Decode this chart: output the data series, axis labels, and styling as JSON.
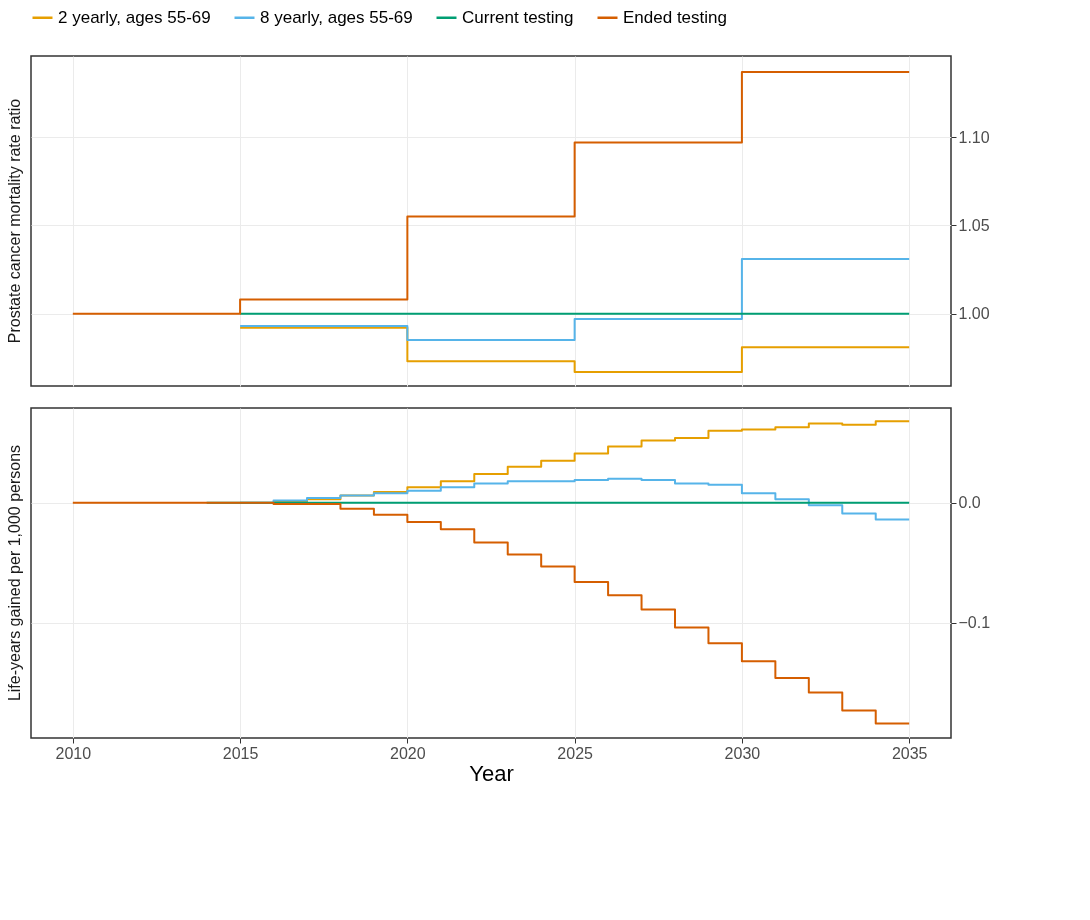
{
  "chart_data": [
    {
      "type": "step",
      "ylabel": "Prostate cancer mortality rate ratio",
      "x": [
        2010,
        2015,
        2020,
        2025,
        2030,
        2035
      ],
      "xlim": [
        2008.75,
        2036.25
      ],
      "xticks": [
        2010,
        2015,
        2020,
        2025,
        2030,
        2035
      ],
      "ylim": [
        0.959,
        1.146
      ],
      "yticks": [
        {
          "value": 1.0,
          "label": "1.00"
        },
        {
          "value": 1.05,
          "label": "1.05"
        },
        {
          "value": 1.1,
          "label": "1.10"
        }
      ],
      "grid": true,
      "legend": "top",
      "tick_labels": "y",
      "series": [
        {
          "name": "2 yearly, ages 55-69",
          "color": "#e69f00",
          "values": [
            null,
            0.992,
            0.973,
            0.967,
            0.981,
            0.981
          ]
        },
        {
          "name": "8 yearly, ages 55-69",
          "color": "#56b4e9",
          "values": [
            null,
            0.993,
            0.985,
            0.997,
            1.031,
            1.031
          ]
        },
        {
          "name": "Current testing",
          "color": "#009e73",
          "values": [
            null,
            1.0,
            1.0,
            1.0,
            1.0,
            1.0
          ]
        },
        {
          "name": "Ended testing",
          "color": "#d55e00",
          "values": [
            1.0,
            1.008,
            1.055,
            1.097,
            1.137,
            1.137
          ]
        }
      ]
    },
    {
      "type": "step",
      "ylabel": "Life-years gained per 1,000 persons",
      "xlabel": "Year",
      "x": [
        2010,
        2011,
        2012,
        2013,
        2014,
        2015,
        2016,
        2017,
        2018,
        2019,
        2020,
        2021,
        2022,
        2023,
        2024,
        2025,
        2026,
        2027,
        2028,
        2029,
        2030,
        2031,
        2032,
        2033,
        2034,
        2035
      ],
      "xlim": [
        2008.75,
        2036.25
      ],
      "xticks": [
        2010,
        2015,
        2020,
        2025,
        2030,
        2035
      ],
      "ylim": [
        -0.196,
        0.079
      ],
      "yticks": [
        {
          "value": -0.1,
          "label": "−0.1"
        },
        {
          "value": 0,
          "label": "0.0"
        }
      ],
      "grid": true,
      "series": [
        {
          "color": "#e69f00",
          "values": [
            null,
            null,
            null,
            null,
            null,
            null,
            0.001,
            0.003,
            0.006,
            0.009,
            0.013,
            0.018,
            0.024,
            0.03,
            0.035,
            0.041,
            0.047,
            0.052,
            0.054,
            0.06,
            0.061,
            0.063,
            0.066,
            0.065,
            0.068,
            0.068
          ]
        },
        {
          "color": "#56b4e9",
          "values": [
            null,
            null,
            null,
            null,
            null,
            0,
            0.002,
            0.004,
            0.006,
            0.008,
            0.01,
            0.013,
            0.016,
            0.018,
            0.018,
            0.019,
            0.02,
            0.019,
            0.016,
            0.015,
            0.008,
            0.003,
            -0.002,
            -0.009,
            -0.014,
            -0.014
          ]
        },
        {
          "color": "#009e73",
          "values": [
            null,
            null,
            null,
            null,
            0,
            0,
            0,
            0,
            0,
            0,
            0,
            0,
            0,
            0,
            0,
            0,
            0,
            0,
            0,
            0,
            0,
            0,
            0,
            0,
            0,
            0
          ]
        },
        {
          "color": "#d55e00",
          "values": [
            0,
            0,
            0,
            0,
            0,
            0,
            -0.001,
            -0.001,
            -0.005,
            -0.01,
            -0.016,
            -0.022,
            -0.033,
            -0.043,
            -0.053,
            -0.066,
            -0.077,
            -0.089,
            -0.104,
            -0.117,
            -0.132,
            -0.146,
            -0.158,
            -0.173,
            -0.184,
            -0.184
          ]
        }
      ]
    }
  ]
}
